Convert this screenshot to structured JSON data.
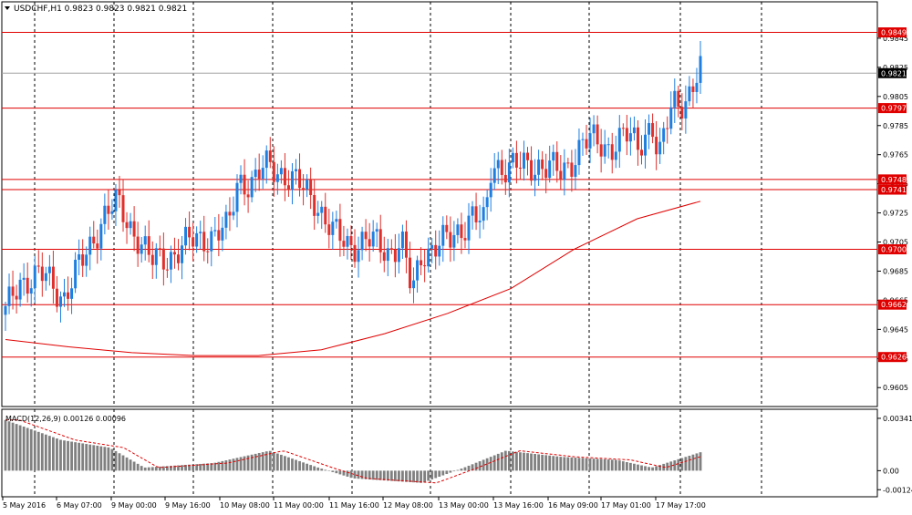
{
  "chart_data": {
    "type": "candlestick",
    "title": "USDCHF,H1  0.9823 0.9823 0.9821 0.9821",
    "symbol": "USDCHF",
    "timeframe": "H1",
    "ohlc_header": {
      "open": 0.9823,
      "high": 0.9823,
      "low": 0.9821,
      "close": 0.9821
    },
    "price_axis": {
      "range": [
        0.9592,
        0.987
      ],
      "ticks": [
        "0.9845",
        "0.9825",
        "0.9805",
        "0.9785",
        "0.9765",
        "0.9745",
        "0.9725",
        "0.9705",
        "0.9685",
        "0.9665",
        "0.9645",
        "0.9625",
        "0.9605"
      ]
    },
    "current_price": "0.9821",
    "horizontal_levels": [
      "0.9849",
      "0.9797",
      "0.9748",
      "0.9741",
      "0.9700",
      "0.9662",
      "0.9626"
    ],
    "x_labels": [
      "5 May 2016",
      "6 May 07:00",
      "9 May 00:00",
      "9 May 16:00",
      "10 May 08:00",
      "11 May 00:00",
      "11 May 16:00",
      "12 May 08:00",
      "13 May 00:00",
      "13 May 16:00",
      "16 May 09:00",
      "17 May 01:00",
      "17 May 17:00"
    ],
    "moving_average": {
      "color": "#e00000",
      "values": [
        0.9638,
        0.9633,
        0.9629,
        0.9627,
        0.9627,
        0.9631,
        0.9642,
        0.9656,
        0.9673,
        0.97,
        0.9721,
        0.9733
      ]
    },
    "macd": {
      "label": "MACD(12,26,9) 0.00126 0.00096",
      "ticks": [
        "0.00341",
        "0.00",
        "-0.00124"
      ],
      "range": [
        -0.0017,
        0.004
      ],
      "signal_color": "#e00000"
    },
    "colors": {
      "up": "#1f7fe0",
      "down": "#e0302c",
      "level": "#e00000",
      "grid": "#000000",
      "macd_hist": "#808080"
    },
    "grid": "vertical dashed"
  }
}
